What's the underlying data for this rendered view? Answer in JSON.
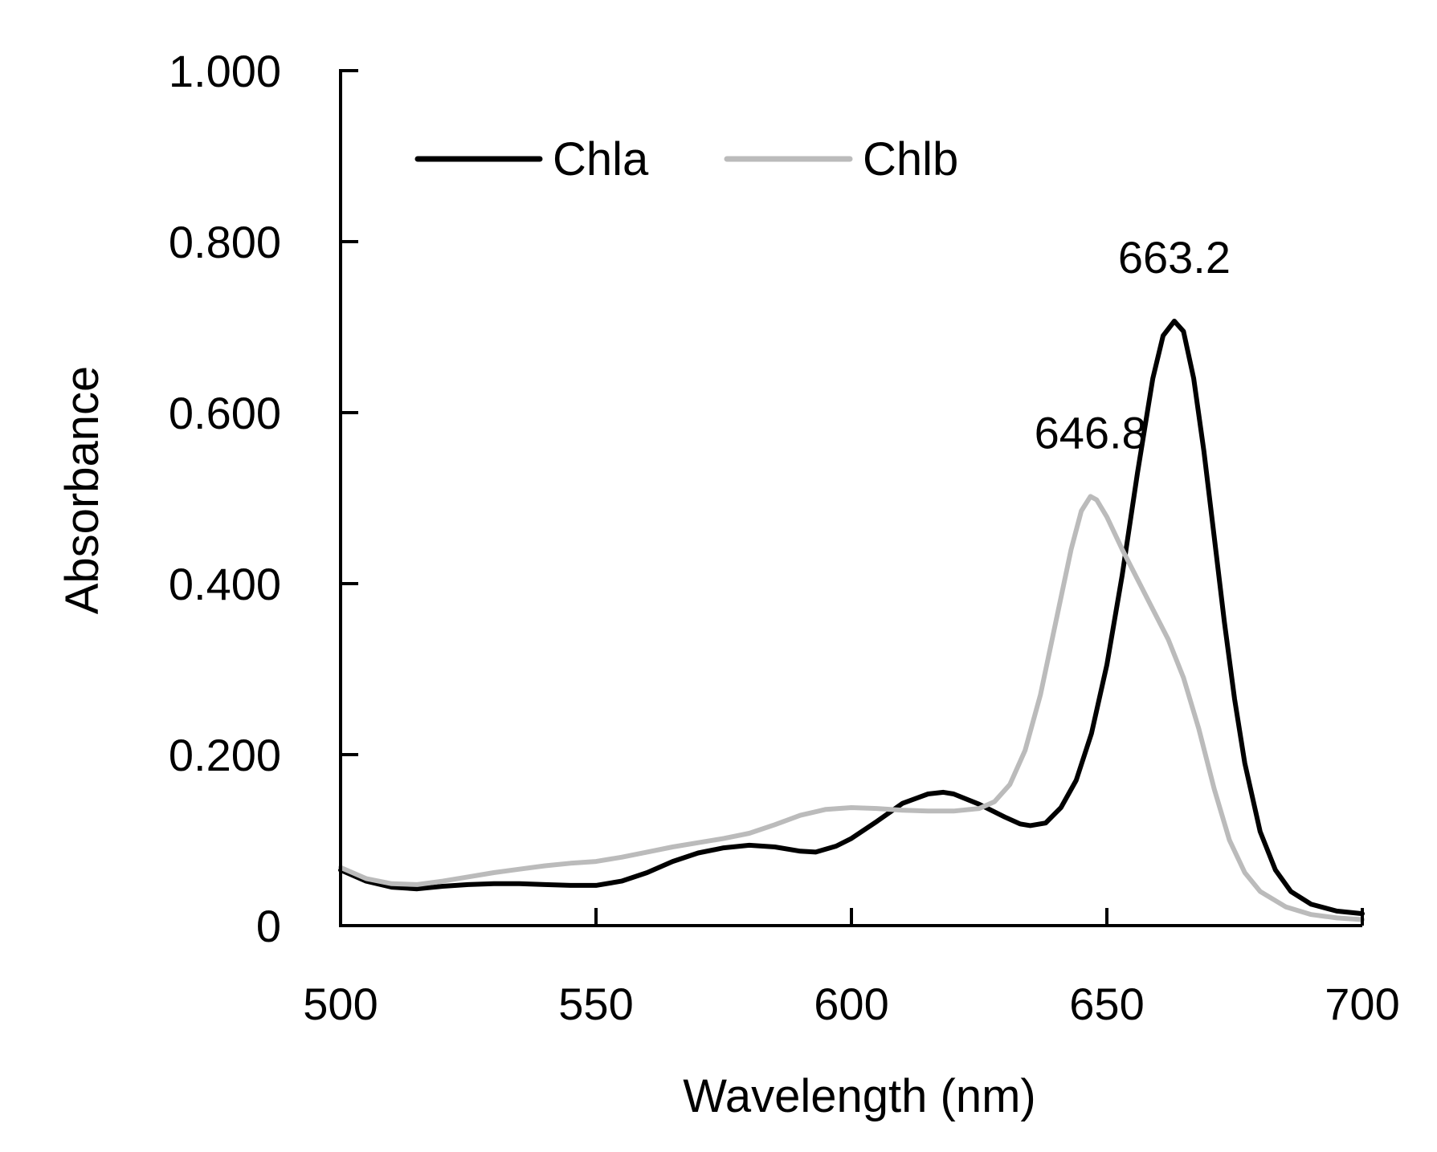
{
  "chart_data": {
    "type": "line",
    "xlabel": "Wavelength (nm)",
    "ylabel": "Absorbance",
    "xlim": [
      500,
      700
    ],
    "ylim": [
      0,
      1.0
    ],
    "x_ticks": [
      "500",
      "550",
      "600",
      "650",
      "700"
    ],
    "y_ticks": [
      "0",
      "0.200",
      "0.400",
      "0.600",
      "0.800",
      "1.000"
    ],
    "grid": false,
    "legend_position": "top-left",
    "series": [
      {
        "name": "Chla",
        "color": "#000000",
        "points": [
          [
            500,
            0.065
          ],
          [
            505,
            0.052
          ],
          [
            510,
            0.045
          ],
          [
            515,
            0.043
          ],
          [
            520,
            0.046
          ],
          [
            525,
            0.048
          ],
          [
            530,
            0.049
          ],
          [
            535,
            0.049
          ],
          [
            540,
            0.048
          ],
          [
            545,
            0.047
          ],
          [
            550,
            0.047
          ],
          [
            555,
            0.052
          ],
          [
            560,
            0.062
          ],
          [
            565,
            0.075
          ],
          [
            570,
            0.085
          ],
          [
            575,
            0.091
          ],
          [
            580,
            0.094
          ],
          [
            585,
            0.092
          ],
          [
            590,
            0.087
          ],
          [
            593,
            0.086
          ],
          [
            597,
            0.093
          ],
          [
            600,
            0.102
          ],
          [
            605,
            0.122
          ],
          [
            610,
            0.143
          ],
          [
            615,
            0.154
          ],
          [
            618,
            0.156
          ],
          [
            620,
            0.154
          ],
          [
            625,
            0.142
          ],
          [
            630,
            0.127
          ],
          [
            633,
            0.119
          ],
          [
            635,
            0.117
          ],
          [
            638,
            0.12
          ],
          [
            641,
            0.138
          ],
          [
            644,
            0.17
          ],
          [
            647,
            0.225
          ],
          [
            650,
            0.305
          ],
          [
            653,
            0.41
          ],
          [
            656,
            0.53
          ],
          [
            659,
            0.64
          ],
          [
            661,
            0.69
          ],
          [
            663.2,
            0.707
          ],
          [
            665,
            0.695
          ],
          [
            667,
            0.64
          ],
          [
            669,
            0.555
          ],
          [
            671,
            0.455
          ],
          [
            673,
            0.355
          ],
          [
            675,
            0.265
          ],
          [
            677,
            0.19
          ],
          [
            680,
            0.11
          ],
          [
            683,
            0.065
          ],
          [
            686,
            0.04
          ],
          [
            690,
            0.025
          ],
          [
            695,
            0.017
          ],
          [
            700,
            0.014
          ]
        ]
      },
      {
        "name": "Chlb",
        "color": "#bbbbbb",
        "points": [
          [
            500,
            0.068
          ],
          [
            505,
            0.055
          ],
          [
            510,
            0.049
          ],
          [
            515,
            0.048
          ],
          [
            520,
            0.052
          ],
          [
            525,
            0.057
          ],
          [
            530,
            0.062
          ],
          [
            535,
            0.066
          ],
          [
            540,
            0.07
          ],
          [
            545,
            0.073
          ],
          [
            550,
            0.075
          ],
          [
            555,
            0.08
          ],
          [
            560,
            0.086
          ],
          [
            565,
            0.092
          ],
          [
            570,
            0.097
          ],
          [
            575,
            0.102
          ],
          [
            580,
            0.108
          ],
          [
            585,
            0.118
          ],
          [
            590,
            0.129
          ],
          [
            595,
            0.136
          ],
          [
            600,
            0.138
          ],
          [
            605,
            0.137
          ],
          [
            610,
            0.135
          ],
          [
            615,
            0.134
          ],
          [
            620,
            0.134
          ],
          [
            625,
            0.137
          ],
          [
            628,
            0.145
          ],
          [
            631,
            0.165
          ],
          [
            634,
            0.205
          ],
          [
            637,
            0.27
          ],
          [
            640,
            0.355
          ],
          [
            643,
            0.44
          ],
          [
            645,
            0.485
          ],
          [
            646.8,
            0.502
          ],
          [
            648,
            0.498
          ],
          [
            650,
            0.478
          ],
          [
            653,
            0.44
          ],
          [
            656,
            0.405
          ],
          [
            659,
            0.37
          ],
          [
            662,
            0.335
          ],
          [
            665,
            0.29
          ],
          [
            668,
            0.23
          ],
          [
            671,
            0.16
          ],
          [
            674,
            0.1
          ],
          [
            677,
            0.062
          ],
          [
            680,
            0.04
          ],
          [
            685,
            0.022
          ],
          [
            690,
            0.013
          ],
          [
            695,
            0.009
          ],
          [
            700,
            0.007
          ]
        ]
      }
    ],
    "annotations": [
      {
        "text": "663.2",
        "x": 663.2,
        "y": 0.707
      },
      {
        "text": "646.8",
        "x": 646.8,
        "y": 0.502
      }
    ]
  }
}
